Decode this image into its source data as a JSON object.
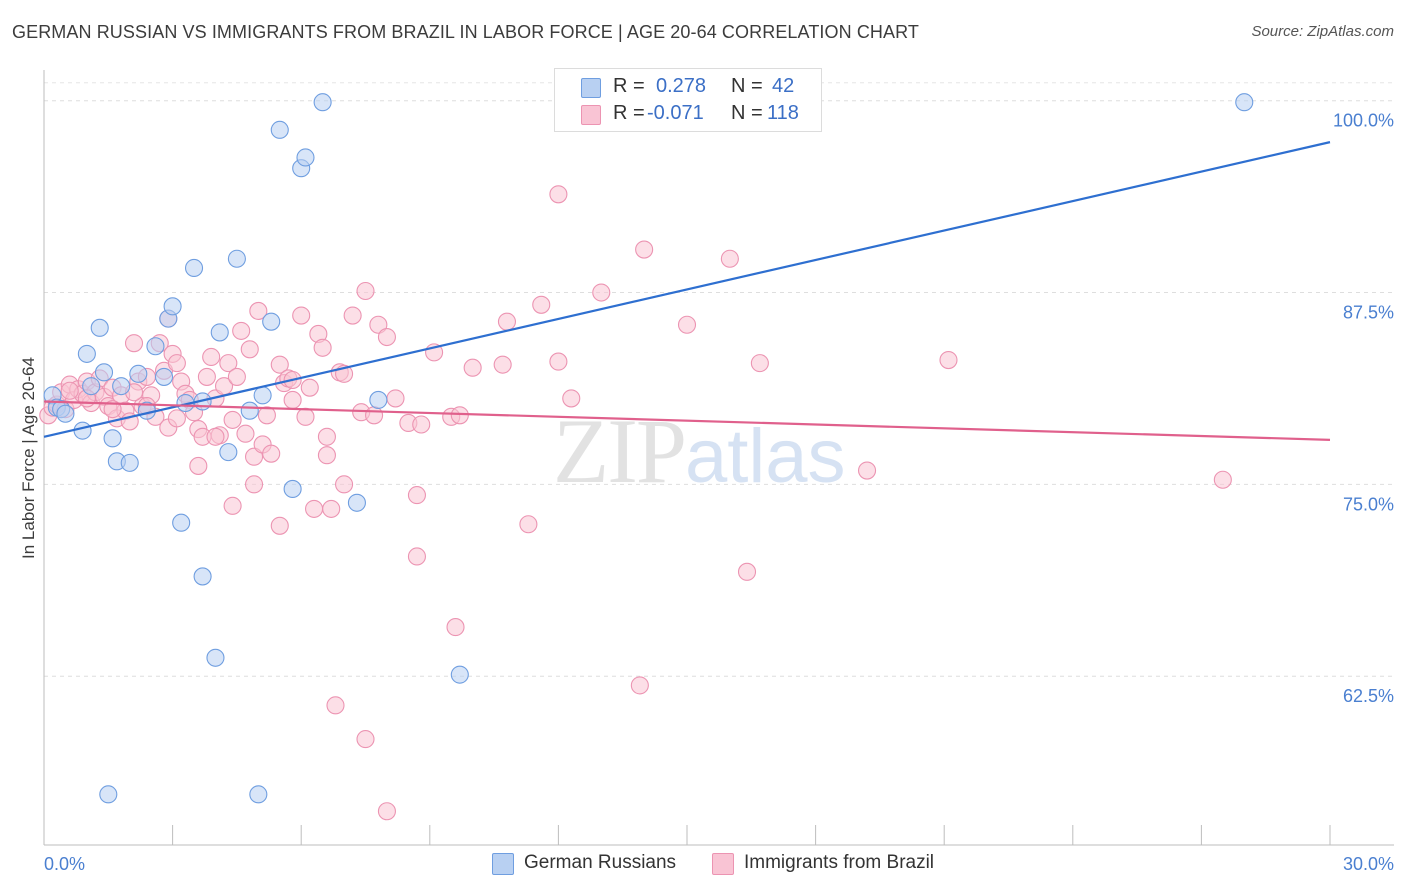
{
  "title": "GERMAN RUSSIAN VS IMMIGRANTS FROM BRAZIL IN LABOR FORCE | AGE 20-64 CORRELATION CHART",
  "source": "Source: ZipAtlas.com",
  "watermark": {
    "zip": "ZIP",
    "atlas": "atlas"
  },
  "legend": {
    "r_label": "R =",
    "n_label": "N =",
    "series": [
      {
        "r": "0.278",
        "n": "42",
        "fill": "#b8d0f2",
        "stroke": "#6f9ee0"
      },
      {
        "r": "-0.071",
        "n": "118",
        "fill": "#f9c4d4",
        "stroke": "#ec94b2"
      }
    ]
  },
  "chart_data": {
    "type": "scatter",
    "ylabel": "In Labor Force | Age 20-64",
    "xlim": [
      0,
      30
    ],
    "ylim": [
      51.5,
      102
    ],
    "x_tick_labels": [
      {
        "value": 0,
        "label": "0.0%"
      },
      {
        "value": 30,
        "label": "30.0%"
      }
    ],
    "x_minor_ticks": [
      3,
      6,
      9,
      12,
      15,
      18,
      21,
      24,
      27,
      30
    ],
    "y_ticks": [
      {
        "value": 100,
        "label": "100.0%"
      },
      {
        "value": 87.5,
        "label": "87.5%"
      },
      {
        "value": 75,
        "label": "75.0%"
      },
      {
        "value": 62.5,
        "label": "62.5%"
      }
    ],
    "series": [
      {
        "name": "German Russians",
        "color": "#6f9ee0",
        "fill": "#b8d0f2",
        "line_color": "#2e6fd0",
        "trend": [
          [
            0,
            78.1
          ],
          [
            30,
            97.3
          ]
        ],
        "points": [
          [
            0.2,
            80.8
          ],
          [
            0.3,
            80.0
          ],
          [
            0.4,
            79.9
          ],
          [
            0.5,
            79.6
          ],
          [
            0.9,
            78.5
          ],
          [
            1.0,
            83.5
          ],
          [
            1.1,
            81.4
          ],
          [
            1.3,
            85.2
          ],
          [
            1.4,
            82.3
          ],
          [
            1.6,
            78.0
          ],
          [
            1.7,
            76.5
          ],
          [
            1.8,
            81.4
          ],
          [
            2.0,
            76.4
          ],
          [
            2.2,
            82.2
          ],
          [
            2.4,
            79.8
          ],
          [
            2.6,
            84.0
          ],
          [
            2.8,
            82.0
          ],
          [
            2.9,
            85.8
          ],
          [
            3.0,
            86.6
          ],
          [
            3.2,
            72.5
          ],
          [
            3.3,
            80.3
          ],
          [
            3.5,
            89.1
          ],
          [
            3.7,
            80.4
          ],
          [
            3.7,
            69.0
          ],
          [
            4.0,
            63.7
          ],
          [
            4.1,
            84.9
          ],
          [
            4.3,
            77.1
          ],
          [
            4.5,
            89.7
          ],
          [
            4.8,
            79.8
          ],
          [
            5.0,
            54.8
          ],
          [
            5.1,
            80.8
          ],
          [
            5.3,
            85.6
          ],
          [
            5.5,
            98.1
          ],
          [
            5.8,
            74.7
          ],
          [
            6.0,
            95.6
          ],
          [
            6.1,
            96.3
          ],
          [
            6.5,
            99.9
          ],
          [
            7.3,
            73.8
          ],
          [
            7.8,
            80.5
          ],
          [
            9.7,
            62.6
          ],
          [
            1.5,
            54.8
          ],
          [
            28.0,
            99.9
          ]
        ]
      },
      {
        "name": "Immigrants from Brazil",
        "color": "#ec94b2",
        "fill": "#f9c4d4",
        "line_color": "#e0608c",
        "trend": [
          [
            0,
            80.4
          ],
          [
            30,
            77.9
          ]
        ],
        "points": [
          [
            0.1,
            79.5
          ],
          [
            0.2,
            80.0
          ],
          [
            0.3,
            80.2
          ],
          [
            0.4,
            81.0
          ],
          [
            0.5,
            79.9
          ],
          [
            0.6,
            81.5
          ],
          [
            0.7,
            80.5
          ],
          [
            0.8,
            81.2
          ],
          [
            0.9,
            80.9
          ],
          [
            1.0,
            81.7
          ],
          [
            1.1,
            80.3
          ],
          [
            1.2,
            81.0
          ],
          [
            1.3,
            81.9
          ],
          [
            1.4,
            80.7
          ],
          [
            1.5,
            80.1
          ],
          [
            1.6,
            81.3
          ],
          [
            1.7,
            79.3
          ],
          [
            1.8,
            80.8
          ],
          [
            1.9,
            79.8
          ],
          [
            2.0,
            79.1
          ],
          [
            2.1,
            84.2
          ],
          [
            2.2,
            81.7
          ],
          [
            2.3,
            80.1
          ],
          [
            2.4,
            82.0
          ],
          [
            2.5,
            80.8
          ],
          [
            2.6,
            79.4
          ],
          [
            2.7,
            84.2
          ],
          [
            2.8,
            82.4
          ],
          [
            2.9,
            85.8
          ],
          [
            3.0,
            83.5
          ],
          [
            3.1,
            82.9
          ],
          [
            3.2,
            81.7
          ],
          [
            3.3,
            80.9
          ],
          [
            3.4,
            80.5
          ],
          [
            3.5,
            79.7
          ],
          [
            3.6,
            78.6
          ],
          [
            3.7,
            78.1
          ],
          [
            3.8,
            82.0
          ],
          [
            3.9,
            83.3
          ],
          [
            4.0,
            80.6
          ],
          [
            4.1,
            78.2
          ],
          [
            4.2,
            81.4
          ],
          [
            4.3,
            82.9
          ],
          [
            4.4,
            79.2
          ],
          [
            4.5,
            82.0
          ],
          [
            4.6,
            85.0
          ],
          [
            4.7,
            78.3
          ],
          [
            4.8,
            83.8
          ],
          [
            4.9,
            76.8
          ],
          [
            5.0,
            86.3
          ],
          [
            5.1,
            77.6
          ],
          [
            5.2,
            79.5
          ],
          [
            5.3,
            77.0
          ],
          [
            5.5,
            82.8
          ],
          [
            5.6,
            81.6
          ],
          [
            5.7,
            81.9
          ],
          [
            5.8,
            81.8
          ],
          [
            6.0,
            86.0
          ],
          [
            6.1,
            79.4
          ],
          [
            6.2,
            81.3
          ],
          [
            6.3,
            73.4
          ],
          [
            6.4,
            84.8
          ],
          [
            6.5,
            83.9
          ],
          [
            6.6,
            78.1
          ],
          [
            6.7,
            73.4
          ],
          [
            6.9,
            82.3
          ],
          [
            7.0,
            82.2
          ],
          [
            7.2,
            86.0
          ],
          [
            7.4,
            79.7
          ],
          [
            7.5,
            87.6
          ],
          [
            7.7,
            79.5
          ],
          [
            7.8,
            85.4
          ],
          [
            8.0,
            84.6
          ],
          [
            8.2,
            80.6
          ],
          [
            8.5,
            79.0
          ],
          [
            8.7,
            74.3
          ],
          [
            9.1,
            83.6
          ],
          [
            9.5,
            79.4
          ],
          [
            9.7,
            79.5
          ],
          [
            10.0,
            82.6
          ],
          [
            10.7,
            82.8
          ],
          [
            10.8,
            85.6
          ],
          [
            11.3,
            72.4
          ],
          [
            11.6,
            86.7
          ],
          [
            12.0,
            83.0
          ],
          [
            12.3,
            80.6
          ],
          [
            13.0,
            87.5
          ],
          [
            14.0,
            90.3
          ],
          [
            15.0,
            85.4
          ],
          [
            16.0,
            89.7
          ],
          [
            16.4,
            69.3
          ],
          [
            16.7,
            82.9
          ],
          [
            19.2,
            75.9
          ],
          [
            21.1,
            83.1
          ],
          [
            27.5,
            75.3
          ],
          [
            12.0,
            93.9
          ],
          [
            7.5,
            58.4
          ],
          [
            6.8,
            60.6
          ],
          [
            8.0,
            53.7
          ],
          [
            8.7,
            70.3
          ],
          [
            9.6,
            65.7
          ],
          [
            13.9,
            61.9
          ],
          [
            2.4,
            80.1
          ],
          [
            4.9,
            75.0
          ],
          [
            1.0,
            80.6
          ],
          [
            0.6,
            81.1
          ],
          [
            1.6,
            79.9
          ],
          [
            2.9,
            78.7
          ],
          [
            3.6,
            76.2
          ],
          [
            4.4,
            73.6
          ],
          [
            5.5,
            72.3
          ],
          [
            7.0,
            75.0
          ],
          [
            2.1,
            81.0
          ],
          [
            3.1,
            79.3
          ],
          [
            4.0,
            78.1
          ],
          [
            5.8,
            80.5
          ],
          [
            6.6,
            76.9
          ],
          [
            8.8,
            78.9
          ]
        ]
      }
    ]
  }
}
